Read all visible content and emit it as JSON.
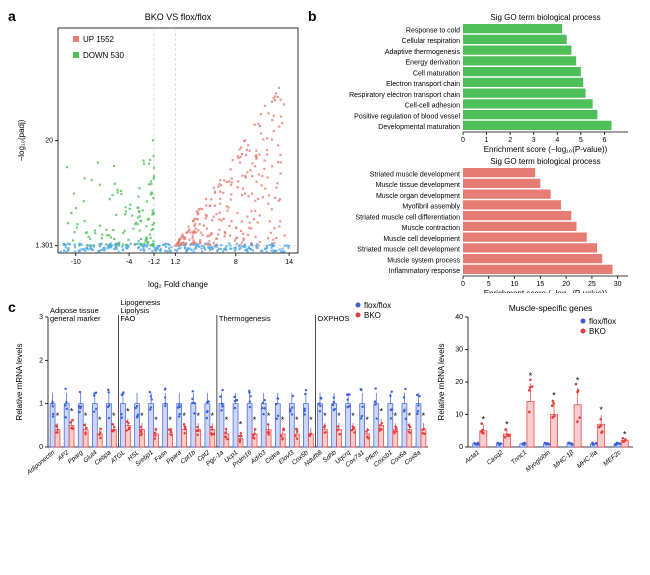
{
  "panel_a": {
    "label": "a",
    "title": "BKO VS flox/flox",
    "legend": {
      "up": "UP 1552",
      "down": "DOWN 530"
    },
    "colors": {
      "up": "#e67d74",
      "down": "#4fbf5a",
      "neutral": "#4fa9e6",
      "grid": "#cfcfcf",
      "axis": "#000000"
    },
    "xlabel": "log₂ Fold change",
    "ylabel": "−log₁₀(padj)",
    "xlim": [
      -12,
      15
    ],
    "xticks": [
      -10,
      -4,
      -1.2,
      1.2,
      8,
      14
    ],
    "ylim": [
      0,
      40
    ],
    "yticks": [
      1.301,
      20
    ],
    "vlines": [
      -1.2,
      1.2
    ],
    "hlines": [
      1.301
    ],
    "scatter_layers": [
      {
        "color": "#4fa9e6",
        "n": 260,
        "x_range": [
          -12,
          14
        ],
        "y_range": [
          0,
          2
        ],
        "spread": "wide"
      },
      {
        "color": "#4fbf5a",
        "n": 120,
        "x_range": [
          -11,
          -1.2
        ],
        "y_range": [
          1.3,
          22
        ],
        "spread": "cluster"
      },
      {
        "color": "#e67d74",
        "n": 260,
        "x_range": [
          1.2,
          13.5
        ],
        "y_range": [
          1.3,
          40
        ],
        "spread": "rise"
      }
    ]
  },
  "panel_b": {
    "label": "b",
    "top": {
      "title": "Sig GO term biological process",
      "xlabel": "Enrichment score (−log₁₀(P-value))",
      "color": "#4fbf5a",
      "xlim": [
        0,
        7
      ],
      "xticks": [
        0,
        1,
        2,
        3,
        4,
        5,
        6
      ],
      "terms": [
        {
          "label": "Response to cold",
          "value": 4.2
        },
        {
          "label": "Cellular respiration",
          "value": 4.4
        },
        {
          "label": "Adaptive thermogenesis",
          "value": 4.6
        },
        {
          "label": "Energy derivation",
          "value": 4.8
        },
        {
          "label": "Cell maturation",
          "value": 5.0
        },
        {
          "label": "Electron transport chain",
          "value": 5.1
        },
        {
          "label": "Respiratory electron transport chain",
          "value": 5.2
        },
        {
          "label": "Cell-cell adhesion",
          "value": 5.5
        },
        {
          "label": "Positive regulation of blood vessel",
          "value": 5.7
        },
        {
          "label": "Developmental maturation",
          "value": 6.3
        }
      ]
    },
    "bottom": {
      "title": "Sig GO term biological process",
      "xlabel": "Enrichment score (−log₁₀(P-value))",
      "color": "#e67d74",
      "xlim": [
        0,
        32
      ],
      "xticks": [
        0,
        5,
        10,
        15,
        20,
        25,
        30
      ],
      "terms": [
        {
          "label": "Striated muscle development",
          "value": 14
        },
        {
          "label": "Muscle tissue development",
          "value": 15
        },
        {
          "label": "Muscle organ development",
          "value": 17
        },
        {
          "label": "Myofibril assembly",
          "value": 19
        },
        {
          "label": "Striated muscle cell differentiation",
          "value": 21
        },
        {
          "label": "Muscle contraction",
          "value": 22
        },
        {
          "label": "Muscle cell development",
          "value": 24
        },
        {
          "label": "Striated muscle cell development",
          "value": 26
        },
        {
          "label": "Muscle system process",
          "value": 27
        },
        {
          "label": "Inflammatory response",
          "value": 29
        }
      ]
    }
  },
  "panel_c": {
    "label": "c",
    "left": {
      "legend": {
        "flox": "flox/flox",
        "bko": "BKO"
      },
      "colors": {
        "flox": "#3a5fd9",
        "bko": "#e63c3c",
        "flox_fill": "#cdd7f5",
        "bko_fill": "#f6cccc",
        "axis": "#000"
      },
      "ylabel": "Relative mRNA levels",
      "ylim": [
        0,
        3
      ],
      "yticks": [
        0,
        1,
        2,
        3
      ],
      "groups": [
        {
          "title": "Adipose tissue\ngeneral marker",
          "start": 0,
          "end": 5
        },
        {
          "title": "Lipogenesis\nLipolysis\nFAO",
          "start": 5,
          "end": 12
        },
        {
          "title": "Thermogenesis",
          "start": 12,
          "end": 19
        },
        {
          "title": "OXPHOS",
          "start": 19,
          "end": 27
        }
      ],
      "genes": [
        {
          "name": "Adiponectin",
          "flox": 1.0,
          "bko": 0.4,
          "sig": true
        },
        {
          "name": "AP2",
          "flox": 1.0,
          "bko": 0.5,
          "sig": true
        },
        {
          "name": "Pparg",
          "flox": 1.0,
          "bko": 0.4,
          "sig": true
        },
        {
          "name": "Glut4",
          "flox": 1.0,
          "bko": 0.3,
          "sig": true
        },
        {
          "name": "Cebpa",
          "flox": 1.0,
          "bko": 0.4,
          "sig": true
        },
        {
          "name": "ATGL",
          "flox": 1.0,
          "bko": 0.5,
          "sig": true
        },
        {
          "name": "HSL",
          "flox": 1.0,
          "bko": 0.4,
          "sig": true
        },
        {
          "name": "Srebp1",
          "flox": 1.0,
          "bko": 0.3,
          "sig": true
        },
        {
          "name": "Fasn",
          "flox": 1.0,
          "bko": 0.3,
          "sig": true
        },
        {
          "name": "Ppara",
          "flox": 1.0,
          "bko": 0.4,
          "sig": true
        },
        {
          "name": "Cpt1b",
          "flox": 1.0,
          "bko": 0.4,
          "sig": true
        },
        {
          "name": "Cpt2",
          "flox": 1.0,
          "bko": 0.4,
          "sig": true
        },
        {
          "name": "Pgc-1a",
          "flox": 1.0,
          "bko": 0.3,
          "sig": true
        },
        {
          "name": "Ucp1",
          "flox": 1.0,
          "bko": 0.2,
          "sig": true
        },
        {
          "name": "Prdm16",
          "flox": 1.0,
          "bko": 0.3,
          "sig": true
        },
        {
          "name": "Adrb3",
          "flox": 1.0,
          "bko": 0.4,
          "sig": true
        },
        {
          "name": "Cidea",
          "flox": 1.0,
          "bko": 0.3,
          "sig": true
        },
        {
          "name": "Elovl3",
          "flox": 1.0,
          "bko": 0.3,
          "sig": true
        },
        {
          "name": "Cox5b",
          "flox": 1.0,
          "bko": 0.3,
          "sig": true
        },
        {
          "name": "Ndufb8",
          "flox": 1.0,
          "bko": 0.4,
          "sig": true
        },
        {
          "name": "Sdhb",
          "flox": 1.0,
          "bko": 0.4,
          "sig": true
        },
        {
          "name": "Uqcrq",
          "flox": 1.0,
          "bko": 0.4,
          "sig": true
        },
        {
          "name": "Cox7a1",
          "flox": 1.0,
          "bko": 0.3,
          "sig": true
        },
        {
          "name": "Pfkm",
          "flox": 1.0,
          "bko": 0.5,
          "sig": true
        },
        {
          "name": "Coxsb1",
          "flox": 1.0,
          "bko": 0.4,
          "sig": true
        },
        {
          "name": "Cox6a",
          "flox": 1.0,
          "bko": 0.4,
          "sig": true
        },
        {
          "name": "Cox8a",
          "flox": 1.0,
          "bko": 0.4,
          "sig": true
        }
      ]
    },
    "right": {
      "title": "Muscle-specific genes",
      "legend": {
        "flox": "flox/flox",
        "bko": "BKO"
      },
      "colors": {
        "flox": "#3a5fd9",
        "bko": "#e63c3c",
        "flox_fill": "#cdd7f5",
        "bko_fill": "#f6cccc"
      },
      "ylabel": "Relative mRNA levels",
      "ylim": [
        0,
        40
      ],
      "yticks": [
        0,
        10,
        20,
        30,
        40
      ],
      "genes": [
        {
          "name": "Acta1",
          "flox": 1.0,
          "bko": 5,
          "sig": true
        },
        {
          "name": "Casq2",
          "flox": 1.0,
          "bko": 4,
          "sig": true
        },
        {
          "name": "Tnnc1",
          "flox": 1.0,
          "bko": 14,
          "sig": true
        },
        {
          "name": "Myoglobin",
          "flox": 1.0,
          "bko": 10,
          "sig": true
        },
        {
          "name": "MHC-1β",
          "flox": 1.0,
          "bko": 13,
          "sig": true
        },
        {
          "name": "MHC-IIa",
          "flox": 1.0,
          "bko": 7,
          "sig": true
        },
        {
          "name": "MEF2c",
          "flox": 1.0,
          "bko": 2,
          "sig": true
        }
      ]
    }
  }
}
